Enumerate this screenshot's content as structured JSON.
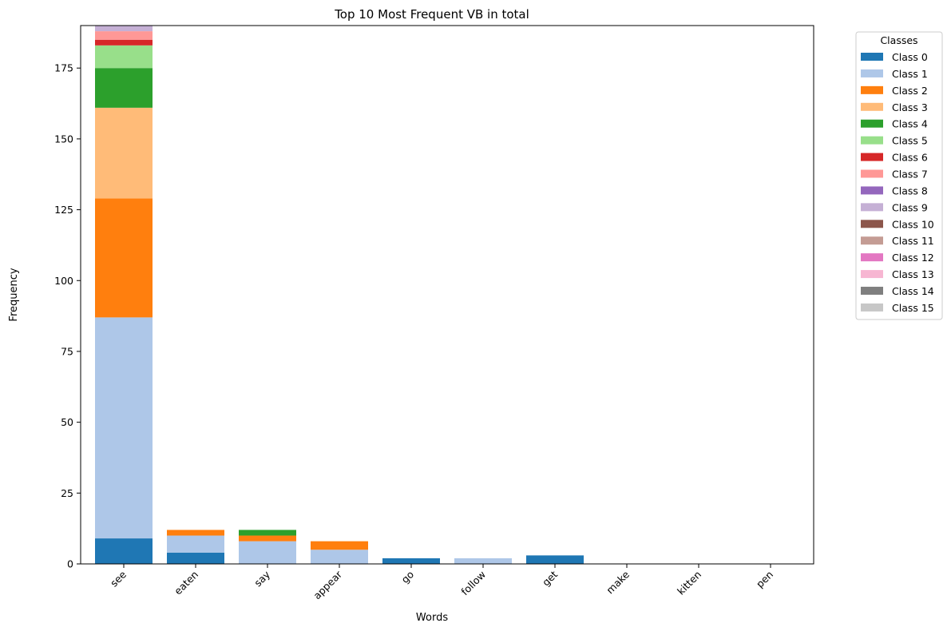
{
  "chart_data": {
    "type": "bar",
    "stacked": true,
    "title": "Top 10 Most Frequent VB in total",
    "xlabel": "Words",
    "ylabel": "Frequency",
    "categories": [
      "see",
      "eaten",
      "say",
      "appear",
      "go",
      "follow",
      "get",
      "make",
      "kitten",
      "pen"
    ],
    "ylim": [
      0,
      190
    ],
    "yticks": [
      0,
      25,
      50,
      75,
      100,
      125,
      150,
      175
    ],
    "grid": false,
    "legend_title": "Classes",
    "legend_position": "outside-top-right",
    "series": [
      {
        "name": "Class 0",
        "color": "#1f77b4",
        "values": [
          9,
          4,
          0,
          0,
          2,
          0,
          3,
          0,
          0,
          0
        ]
      },
      {
        "name": "Class 1",
        "color": "#aec7e8",
        "values": [
          78,
          6,
          8,
          5,
          0,
          2,
          0,
          0,
          0,
          0
        ]
      },
      {
        "name": "Class 2",
        "color": "#ff7f0e",
        "values": [
          42,
          2,
          2,
          3,
          0,
          0,
          0,
          0,
          0,
          0
        ]
      },
      {
        "name": "Class 3",
        "color": "#ffbb78",
        "values": [
          32,
          0,
          0,
          0,
          0,
          0,
          0,
          0,
          0,
          0
        ]
      },
      {
        "name": "Class 4",
        "color": "#2ca02c",
        "values": [
          14,
          0,
          2,
          0,
          0,
          0,
          0,
          0,
          0,
          0
        ]
      },
      {
        "name": "Class 5",
        "color": "#98df8a",
        "values": [
          8,
          0,
          0,
          0,
          0,
          0,
          0,
          0,
          0,
          0
        ]
      },
      {
        "name": "Class 6",
        "color": "#d62728",
        "values": [
          2,
          0,
          0,
          0,
          0,
          0,
          0,
          0,
          0,
          0
        ]
      },
      {
        "name": "Class 7",
        "color": "#ff9896",
        "values": [
          3,
          0,
          0,
          0,
          0,
          0,
          0,
          0,
          0,
          0
        ]
      },
      {
        "name": "Class 8",
        "color": "#9467bd",
        "values": [
          0,
          0,
          0,
          0,
          0,
          0,
          0,
          0,
          0,
          0
        ]
      },
      {
        "name": "Class 9",
        "color": "#c5b0d5",
        "values": [
          2,
          0,
          0,
          0,
          0,
          0,
          0,
          0,
          0,
          0
        ]
      },
      {
        "name": "Class 10",
        "color": "#8c564b",
        "values": [
          0,
          0,
          0,
          0,
          0,
          0,
          0,
          0,
          0,
          0
        ]
      },
      {
        "name": "Class 11",
        "color": "#c49c94",
        "values": [
          0,
          0,
          0,
          0,
          0,
          0,
          0,
          0,
          0,
          0
        ]
      },
      {
        "name": "Class 12",
        "color": "#e377c2",
        "values": [
          0,
          0,
          0,
          0,
          0,
          0,
          0,
          0,
          0,
          0
        ]
      },
      {
        "name": "Class 13",
        "color": "#f7b6d2",
        "values": [
          0,
          0,
          0,
          0,
          0,
          0,
          0,
          0,
          0,
          0
        ]
      },
      {
        "name": "Class 14",
        "color": "#7f7f7f",
        "values": [
          0,
          0,
          0,
          0,
          0,
          0,
          0,
          0,
          0,
          0
        ]
      },
      {
        "name": "Class 15",
        "color": "#c7c7c7",
        "values": [
          0,
          0,
          0,
          0,
          0,
          0,
          0,
          0,
          0,
          0
        ]
      }
    ]
  }
}
